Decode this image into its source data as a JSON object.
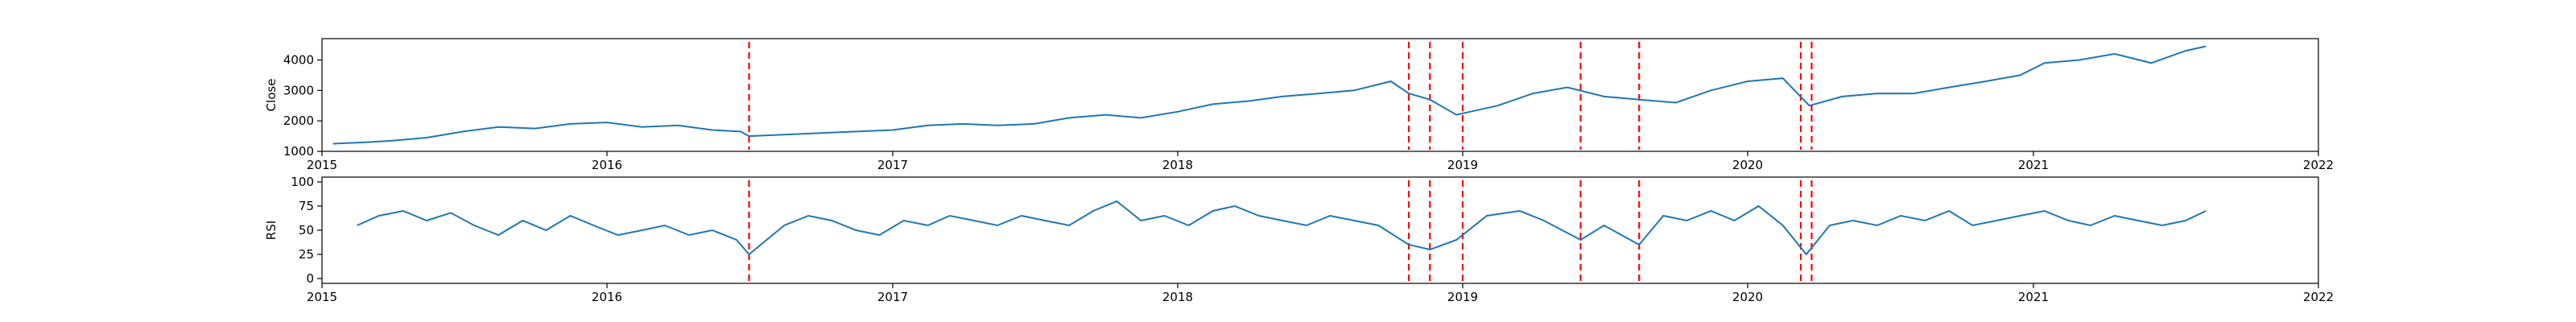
{
  "chart_data": [
    {
      "type": "line",
      "title": "",
      "xlabel": "",
      "ylabel": "Close",
      "xlim": [
        "2015-01-01",
        "2022-01-01"
      ],
      "ylim": [
        1000,
        4700
      ],
      "xticks": [
        "2015",
        "2016",
        "2017",
        "2018",
        "2019",
        "2020",
        "2021",
        "2022"
      ],
      "yticks": [
        "1000",
        "2000",
        "3000",
        "4000"
      ],
      "grid": false,
      "line_color": "#1f77b4",
      "marker_color": "#ff0000",
      "markers": [
        "2016-07-01",
        "2018-10-24",
        "2018-11-20",
        "2019-01-01",
        "2019-06-01",
        "2019-08-15",
        "2020-03-09",
        "2020-03-23"
      ],
      "x": [
        "2015-01-15",
        "2015-03-01",
        "2015-04-01",
        "2015-05-15",
        "2015-07-01",
        "2015-08-15",
        "2015-10-01",
        "2015-11-15",
        "2016-01-01",
        "2016-02-15",
        "2016-04-01",
        "2016-05-15",
        "2016-06-20",
        "2016-07-01",
        "2016-08-15",
        "2016-10-01",
        "2016-11-15",
        "2017-01-01",
        "2017-02-15",
        "2017-04-01",
        "2017-05-15",
        "2017-07-01",
        "2017-08-15",
        "2017-10-01",
        "2017-11-15",
        "2018-01-01",
        "2018-02-15",
        "2018-04-01",
        "2018-05-15",
        "2018-07-01",
        "2018-08-15",
        "2018-10-01",
        "2018-10-24",
        "2018-11-20",
        "2018-12-24",
        "2019-02-15",
        "2019-04-01",
        "2019-05-15",
        "2019-07-01",
        "2019-08-15",
        "2019-10-01",
        "2019-11-15",
        "2020-01-01",
        "2020-02-15",
        "2020-03-20",
        "2020-05-01",
        "2020-06-15",
        "2020-08-01",
        "2020-09-15",
        "2020-11-01",
        "2020-12-15",
        "2021-01-15",
        "2021-03-01",
        "2021-04-15",
        "2021-06-01",
        "2021-07-15",
        "2021-08-10"
      ],
      "values": [
        1250,
        1300,
        1350,
        1450,
        1650,
        1800,
        1750,
        1900,
        1950,
        1800,
        1850,
        1700,
        1650,
        1500,
        1550,
        1600,
        1650,
        1700,
        1850,
        1900,
        1850,
        1900,
        2100,
        2200,
        2100,
        2300,
        2550,
        2650,
        2800,
        2900,
        3000,
        3300,
        2900,
        2700,
        2200,
        2500,
        2900,
        3100,
        2800,
        2700,
        2600,
        3000,
        3300,
        3400,
        2500,
        2800,
        2900,
        2900,
        3100,
        3300,
        3500,
        3900,
        4000,
        4200,
        3900,
        4300,
        4450
      ]
    },
    {
      "type": "line",
      "title": "",
      "xlabel": "",
      "ylabel": "RSI",
      "xlim": [
        "2015-01-01",
        "2022-01-01"
      ],
      "ylim": [
        -5,
        105
      ],
      "xticks": [
        "2015",
        "2016",
        "2017",
        "2018",
        "2019",
        "2020",
        "2021",
        "2022"
      ],
      "yticks": [
        "0",
        "25",
        "50",
        "75",
        "100"
      ],
      "grid": false,
      "line_color": "#1f77b4",
      "marker_color": "#ff0000",
      "markers": [
        "2016-07-01",
        "2018-10-24",
        "2018-11-20",
        "2019-01-01",
        "2019-06-01",
        "2019-08-15",
        "2020-03-09",
        "2020-03-23"
      ],
      "x": [
        "2015-02-15",
        "2015-03-15",
        "2015-04-15",
        "2015-05-15",
        "2015-06-15",
        "2015-07-15",
        "2015-08-15",
        "2015-09-15",
        "2015-10-15",
        "2015-11-15",
        "2015-12-15",
        "2016-01-15",
        "2016-02-15",
        "2016-03-15",
        "2016-04-15",
        "2016-05-15",
        "2016-06-15",
        "2016-07-01",
        "2016-08-15",
        "2016-09-15",
        "2016-10-15",
        "2016-11-15",
        "2016-12-15",
        "2017-01-15",
        "2017-02-15",
        "2017-03-15",
        "2017-04-15",
        "2017-05-15",
        "2017-06-15",
        "2017-07-15",
        "2017-08-15",
        "2017-09-15",
        "2017-10-15",
        "2017-11-15",
        "2017-12-15",
        "2018-01-15",
        "2018-02-15",
        "2018-03-15",
        "2018-04-15",
        "2018-05-15",
        "2018-06-15",
        "2018-07-15",
        "2018-08-15",
        "2018-09-15",
        "2018-10-24",
        "2018-11-20",
        "2018-12-24",
        "2019-02-01",
        "2019-03-15",
        "2019-04-15",
        "2019-06-01",
        "2019-07-01",
        "2019-08-15",
        "2019-09-15",
        "2019-10-15",
        "2019-11-15",
        "2019-12-15",
        "2020-01-15",
        "2020-02-15",
        "2020-03-16",
        "2020-04-15",
        "2020-05-15",
        "2020-06-15",
        "2020-07-15",
        "2020-08-15",
        "2020-09-15",
        "2020-10-15",
        "2020-11-15",
        "2020-12-15",
        "2021-01-15",
        "2021-02-15",
        "2021-03-15",
        "2021-04-15",
        "2021-05-15",
        "2021-06-15",
        "2021-07-15",
        "2021-08-10"
      ],
      "values": [
        55,
        65,
        70,
        60,
        68,
        55,
        45,
        60,
        50,
        65,
        55,
        45,
        50,
        55,
        45,
        50,
        40,
        25,
        55,
        65,
        60,
        50,
        45,
        60,
        55,
        65,
        60,
        55,
        65,
        60,
        55,
        70,
        80,
        60,
        65,
        55,
        70,
        75,
        65,
        60,
        55,
        65,
        60,
        55,
        35,
        30,
        40,
        65,
        70,
        60,
        40,
        55,
        35,
        65,
        60,
        70,
        60,
        75,
        55,
        25,
        55,
        60,
        55,
        65,
        60,
        70,
        55,
        60,
        65,
        70,
        60,
        55,
        65,
        60,
        55,
        60,
        70
      ]
    }
  ]
}
